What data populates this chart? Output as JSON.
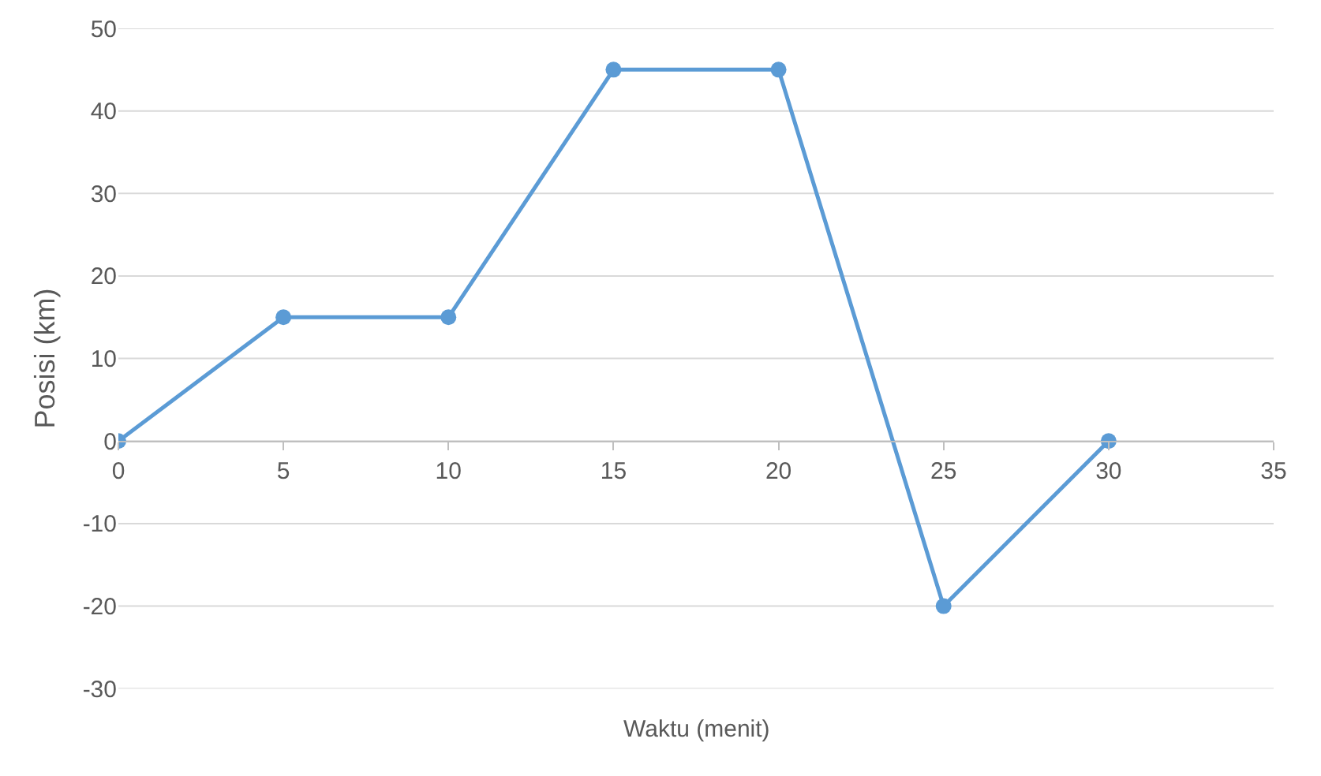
{
  "chart_data": {
    "type": "line",
    "xlabel": "Waktu (menit)",
    "ylabel": "Posisi (km)",
    "x": [
      0,
      5,
      10,
      15,
      20,
      25,
      30
    ],
    "series": [
      {
        "color": "#5b9bd5",
        "values": [
          0,
          15,
          15,
          45,
          45,
          -20,
          0
        ]
      }
    ],
    "xlim": [
      0,
      35
    ],
    "xticks": [
      0,
      5,
      10,
      15,
      20,
      25,
      30,
      35
    ],
    "ylim": [
      -30,
      50
    ],
    "yticks": [
      -30,
      -20,
      -10,
      0,
      10,
      20,
      30,
      40,
      50
    ],
    "grid": "y",
    "marker": "circle",
    "line_style": "solid"
  }
}
